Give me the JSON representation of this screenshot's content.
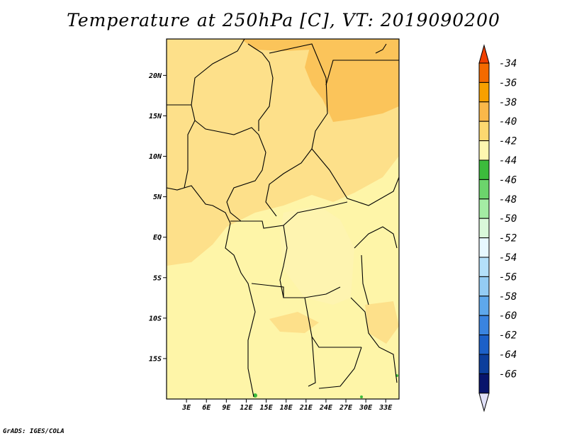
{
  "title": "Temperature at 250hPa [C], VT: 2019090200",
  "credit": "GrADS: IGES/COLA",
  "map": {
    "lon_range": [
      0,
      35
    ],
    "lat_range": [
      -20,
      24.5
    ],
    "lon_ticks": [
      "3E",
      "6E",
      "9E",
      "12E",
      "15E",
      "18E",
      "21E",
      "24E",
      "27E",
      "30E",
      "33E"
    ],
    "lat_ticks": [
      "20N",
      "15N",
      "10N",
      "5N",
      "EQ",
      "5S",
      "10S",
      "15S"
    ]
  },
  "colorbar": {
    "labels": [
      "-34",
      "-36",
      "-38",
      "-40",
      "-42",
      "-44",
      "-46",
      "-48",
      "-50",
      "-52",
      "-54",
      "-56",
      "-58",
      "-60",
      "-62",
      "-64",
      "-66"
    ],
    "colors": [
      "#f04000",
      "#f46a00",
      "#f8a000",
      "#fab84a",
      "#fcd870",
      "#fef7b0",
      "#3cbc3c",
      "#6cd46c",
      "#a4eca4",
      "#daf8da",
      "#e8f8ff",
      "#b4e0fa",
      "#94ccf4",
      "#5ea8ec",
      "#3a84e0",
      "#1c60c8",
      "#0c3e9c",
      "#08146c",
      "#e0e0f8"
    ]
  }
}
